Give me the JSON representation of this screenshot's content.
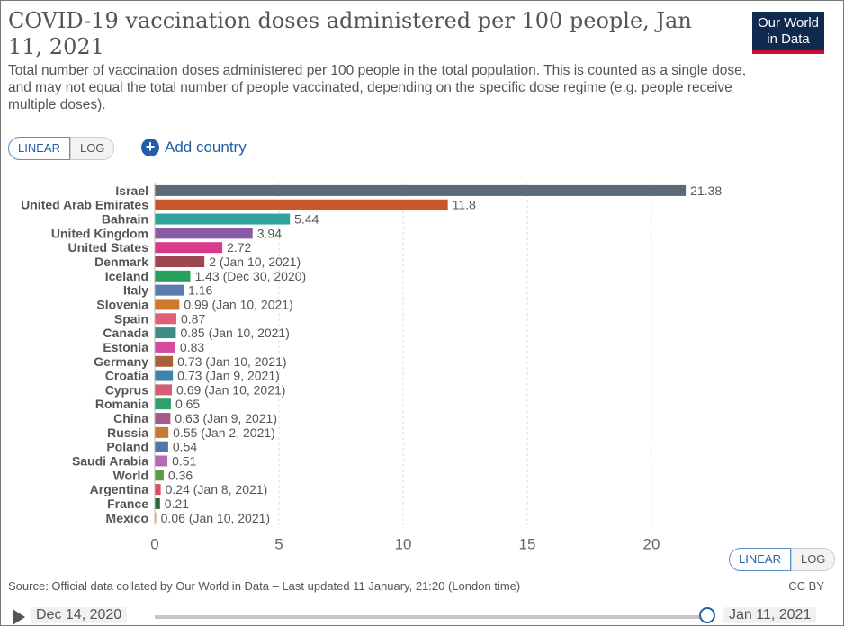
{
  "header": {
    "title": "COVID-19 vaccination doses administered per 100 people, Jan 11, 2021",
    "subtitle": "Total number of vaccination doses administered per 100 people in the total population. This is counted as a single dose, and may not equal the total number of people vaccinated, depending on the specific dose regime (e.g. people receive multiple doses).",
    "logo_line1": "Our World",
    "logo_line2": "in Data",
    "logo_colors": {
      "background": "#0f2a4e",
      "stripe": "#c8102e"
    }
  },
  "controls": {
    "linear_label": "LINEAR",
    "log_label": "LOG",
    "selected_scale": "LINEAR",
    "add_country_label": "Add country"
  },
  "chart_data": {
    "type": "bar",
    "orientation": "horizontal",
    "title": "COVID-19 vaccination doses administered per 100 people, Jan 11, 2021",
    "xlim": [
      0,
      22
    ],
    "xticks": [
      0,
      5,
      10,
      15,
      20
    ],
    "grid": "vertical dashed",
    "categories": [
      "Israel",
      "United Arab Emirates",
      "Bahrain",
      "United Kingdom",
      "United States",
      "Denmark",
      "Iceland",
      "Italy",
      "Slovenia",
      "Spain",
      "Canada",
      "Estonia",
      "Germany",
      "Croatia",
      "Cyprus",
      "Romania",
      "China",
      "Russia",
      "Poland",
      "Saudi Arabia",
      "World",
      "Argentina",
      "France",
      "Mexico"
    ],
    "values": [
      21.38,
      11.8,
      5.44,
      3.94,
      2.72,
      2,
      1.43,
      1.16,
      0.99,
      0.87,
      0.85,
      0.83,
      0.73,
      0.73,
      0.69,
      0.65,
      0.63,
      0.55,
      0.54,
      0.51,
      0.36,
      0.24,
      0.21,
      0.06
    ],
    "labels": [
      "21.38",
      "11.8",
      "5.44",
      "3.94",
      "2.72",
      "2 (Jan 10, 2021)",
      "1.43 (Dec 30, 2020)",
      "1.16",
      "0.99 (Jan 10, 2021)",
      "0.87",
      "0.85 (Jan 10, 2021)",
      "0.83",
      "0.73 (Jan 10, 2021)",
      "0.73 (Jan 9, 2021)",
      "0.69 (Jan 10, 2021)",
      "0.65",
      "0.63 (Jan 9, 2021)",
      "0.55 (Jan 2, 2021)",
      "0.54",
      "0.51",
      "0.36",
      "0.24 (Jan 8, 2021)",
      "0.21",
      "0.06 (Jan 10, 2021)"
    ],
    "colors": [
      "#5b6979",
      "#c8582b",
      "#2fa39a",
      "#8a5ca8",
      "#d93a8d",
      "#9c4650",
      "#2aa05f",
      "#5c7cb0",
      "#d0772c",
      "#e0607a",
      "#3d8f85",
      "#d44aa0",
      "#a8613a",
      "#3f82b0",
      "#d05f77",
      "#2fa06a",
      "#a35b8a",
      "#c9782f",
      "#4f78a8",
      "#b46ab8",
      "#5f9b45",
      "#d94f65",
      "#2a6a3c",
      "#e0a878"
    ]
  },
  "footer": {
    "source": "Source: Official data collated by Our World in Data – Last updated 11 January, 21:20 (London time)",
    "license": "CC BY"
  },
  "timeline": {
    "start_date": "Dec 14, 2020",
    "end_date": "Jan 11, 2021"
  }
}
